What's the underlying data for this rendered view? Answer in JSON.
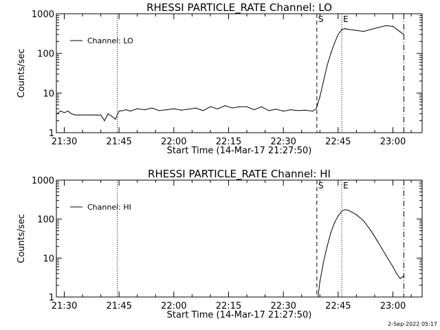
{
  "footer_stamp": "2-Sep-2022 05:17",
  "chart_data": [
    {
      "type": "line",
      "title": "RHESSI PARTICLE_RATE Channel: LO",
      "xlabel": "Start Time (14-Mar-17 21:27:50)",
      "ylabel": "Counts/sec",
      "yscale": "log",
      "ylim": [
        1,
        1000
      ],
      "xlim": [
        "21:27:50",
        "23:08:00"
      ],
      "x_ticks": [
        "21:30",
        "21:45",
        "22:00",
        "22:15",
        "22:30",
        "22:45",
        "23:00"
      ],
      "y_ticks": [
        "1",
        "10",
        "100",
        "1000"
      ],
      "legend": {
        "position": "top-left",
        "entries": [
          "Channel: LO"
        ]
      },
      "markers": [
        {
          "time": "21:44:30",
          "style": "dotted",
          "label": ""
        },
        {
          "time": "22:39:10",
          "style": "dashed",
          "label": "S"
        },
        {
          "time": "22:46:00",
          "style": "dotted",
          "label": "E"
        },
        {
          "time": "23:03:00",
          "style": "dashdot",
          "label": ""
        }
      ],
      "series": [
        {
          "name": "Channel: LO",
          "x": [
            "21:28:00",
            "21:29:00",
            "21:30:00",
            "21:31:00",
            "21:32:00",
            "21:33:00",
            "21:34:00",
            "21:35:00",
            "21:36:00",
            "21:37:00",
            "21:38:00",
            "21:39:00",
            "21:40:00",
            "21:41:00",
            "21:42:00",
            "21:43:00",
            "21:44:00",
            "21:45:00",
            "21:46:00",
            "21:47:00",
            "21:48:00",
            "21:50:00",
            "21:52:00",
            "21:54:00",
            "21:56:00",
            "21:58:00",
            "22:00:00",
            "22:02:00",
            "22:04:00",
            "22:06:00",
            "22:08:00",
            "22:10:00",
            "22:12:00",
            "22:14:00",
            "22:16:00",
            "22:18:00",
            "22:20:00",
            "22:22:00",
            "22:24:00",
            "22:26:00",
            "22:28:00",
            "22:30:00",
            "22:32:00",
            "22:34:00",
            "22:36:00",
            "22:38:00",
            "22:39:00",
            "22:40:00",
            "22:41:00",
            "22:42:00",
            "22:43:00",
            "22:44:00",
            "22:45:00",
            "22:46:00",
            "22:47:00",
            "22:48:00",
            "22:50:00",
            "22:52:00",
            "22:54:00",
            "22:56:00",
            "22:58:00",
            "23:00:00",
            "23:02:00",
            "23:03:00"
          ],
          "y": [
            3.0,
            3.5,
            3.2,
            3.5,
            3.0,
            2.8,
            2.8,
            2.8,
            2.8,
            2.8,
            2.8,
            2.8,
            2.8,
            2.0,
            3.0,
            2.6,
            2.2,
            3.5,
            3.6,
            3.8,
            3.5,
            4.0,
            3.8,
            4.2,
            3.6,
            3.8,
            4.0,
            3.7,
            3.9,
            4.2,
            3.6,
            4.5,
            4.0,
            4.8,
            4.2,
            4.5,
            4.5,
            3.8,
            4.5,
            3.6,
            3.9,
            3.5,
            3.8,
            3.6,
            3.7,
            3.5,
            4.0,
            8,
            20,
            50,
            100,
            180,
            300,
            400,
            420,
            400,
            380,
            360,
            400,
            450,
            500,
            480,
            350,
            300
          ]
        }
      ]
    },
    {
      "type": "line",
      "title": "RHESSI PARTICLE_RATE Channel: HI",
      "xlabel": "Start Time (14-Mar-17 21:27:50)",
      "ylabel": "Counts/sec",
      "yscale": "log",
      "ylim": [
        1,
        1000
      ],
      "xlim": [
        "21:27:50",
        "23:08:00"
      ],
      "x_ticks": [
        "21:30",
        "21:45",
        "22:00",
        "22:15",
        "22:30",
        "22:45",
        "23:00"
      ],
      "y_ticks": [
        "1",
        "10",
        "100",
        "1000"
      ],
      "legend": {
        "position": "top-left",
        "entries": [
          "Channel: HI"
        ]
      },
      "markers": [
        {
          "time": "21:44:30",
          "style": "dotted",
          "label": ""
        },
        {
          "time": "22:39:10",
          "style": "dashed",
          "label": "S"
        },
        {
          "time": "22:46:00",
          "style": "dotted",
          "label": "E"
        },
        {
          "time": "23:03:00",
          "style": "dashdot",
          "label": ""
        }
      ],
      "series": [
        {
          "name": "Channel: HI",
          "x": [
            "22:39:30",
            "22:40:00",
            "22:41:00",
            "22:42:00",
            "22:43:00",
            "22:44:00",
            "22:45:00",
            "22:46:00",
            "22:47:00",
            "22:48:00",
            "22:50:00",
            "22:52:00",
            "22:54:00",
            "22:56:00",
            "22:58:00",
            "23:00:00",
            "23:01:00",
            "23:02:00",
            "23:03:00"
          ],
          "y": [
            1.0,
            2.5,
            8,
            20,
            45,
            80,
            120,
            160,
            175,
            165,
            130,
            90,
            50,
            25,
            12,
            6,
            4,
            3,
            3.5
          ]
        }
      ]
    }
  ]
}
